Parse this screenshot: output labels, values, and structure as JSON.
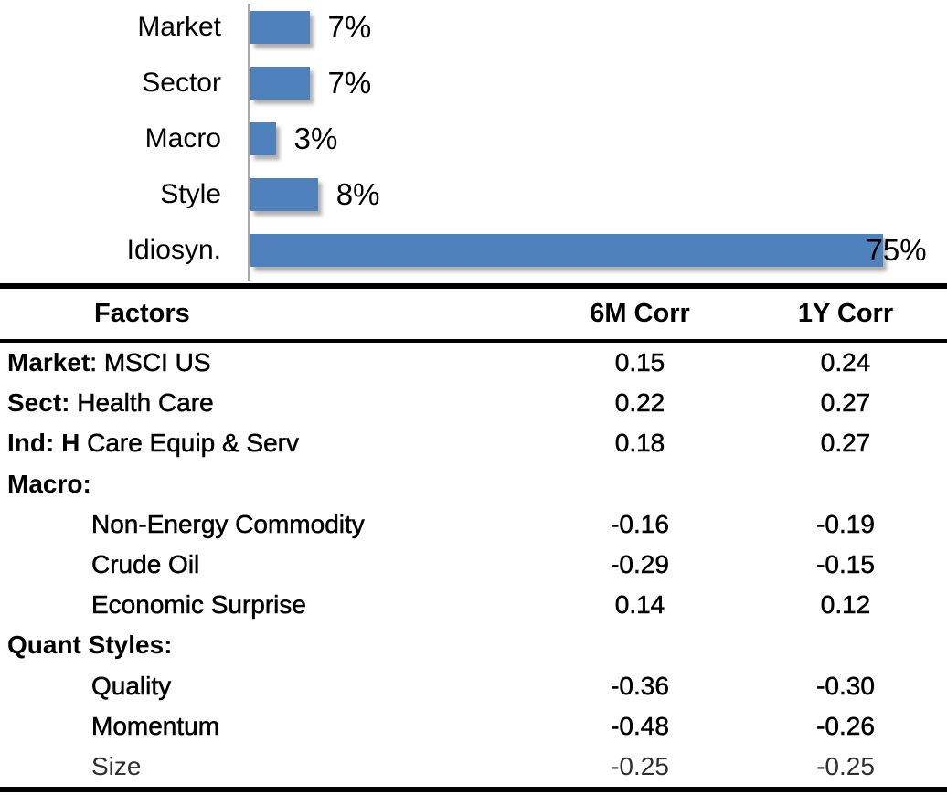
{
  "chart_data": {
    "type": "bar",
    "orientation": "horizontal",
    "title": "",
    "categories": [
      "Market",
      "Sector",
      "Macro",
      "Style",
      "Idiosyn."
    ],
    "values": [
      7,
      7,
      3,
      8,
      75
    ],
    "value_labels": [
      "7%",
      "7%",
      "3%",
      "8%",
      "75%"
    ],
    "xlim": [
      0,
      75
    ],
    "grid": false,
    "legend": false,
    "bar_color": "#4f81bd",
    "axis_color": "#a6a6a6"
  },
  "table": {
    "headers": {
      "factors": "Factors",
      "corr6m": "6M Corr",
      "corr1y": "1Y Corr"
    },
    "rows": [
      {
        "prefix": "Market",
        "rest": ": MSCI US",
        "corr6m": "0.15",
        "corr1y": "0.24"
      },
      {
        "prefix": "Sect:",
        "rest": " Health Care",
        "corr6m": "0.22",
        "corr1y": "0.27"
      },
      {
        "prefix": "Ind: H",
        "rest": " Care Equip & Serv",
        "corr6m": "0.18",
        "corr1y": "0.27"
      },
      {
        "prefix": "Macro:",
        "rest": "",
        "corr6m": "",
        "corr1y": ""
      },
      {
        "prefix": "",
        "rest": "Non-Energy Commodity",
        "corr6m": "-0.16",
        "corr1y": "-0.19"
      },
      {
        "prefix": "",
        "rest": "Crude Oil",
        "corr6m": "-0.29",
        "corr1y": "-0.15"
      },
      {
        "prefix": "",
        "rest": "Economic Surprise",
        "corr6m": "0.14",
        "corr1y": "0.12"
      },
      {
        "prefix": "Quant Styles:",
        "rest": "",
        "corr6m": "",
        "corr1y": ""
      },
      {
        "prefix": "",
        "rest": "Quality",
        "corr6m": "-0.36",
        "corr1y": "-0.30"
      },
      {
        "prefix": "",
        "rest": "Momentum",
        "corr6m": "-0.48",
        "corr1y": "-0.26"
      },
      {
        "prefix": "",
        "rest": "Size",
        "corr6m": "-0.25",
        "corr1y": "-0.25"
      }
    ]
  }
}
